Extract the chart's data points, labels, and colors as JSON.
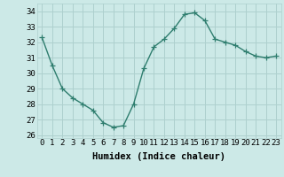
{
  "x": [
    0,
    1,
    2,
    3,
    4,
    5,
    6,
    7,
    8,
    9,
    10,
    11,
    12,
    13,
    14,
    15,
    16,
    17,
    18,
    19,
    20,
    21,
    22,
    23
  ],
  "y": [
    32.3,
    30.5,
    29.0,
    28.4,
    28.0,
    27.6,
    26.8,
    26.5,
    26.6,
    28.0,
    30.3,
    31.7,
    32.2,
    32.9,
    33.8,
    33.9,
    33.4,
    32.2,
    32.0,
    31.8,
    31.4,
    31.1,
    31.0,
    31.1
  ],
  "line_color": "#2e7d6e",
  "marker": "+",
  "marker_size": 4,
  "bg_color": "#cce9e7",
  "grid_color": "#aed0ce",
  "xlabel": "Humidex (Indice chaleur)",
  "ylim": [
    25.8,
    34.5
  ],
  "xlim": [
    -0.5,
    23.5
  ],
  "yticks": [
    26,
    27,
    28,
    29,
    30,
    31,
    32,
    33,
    34
  ],
  "xticks": [
    0,
    1,
    2,
    3,
    4,
    5,
    6,
    7,
    8,
    9,
    10,
    11,
    12,
    13,
    14,
    15,
    16,
    17,
    18,
    19,
    20,
    21,
    22,
    23
  ],
  "tick_fontsize": 6.5,
  "xlabel_fontsize": 7.5,
  "line_width": 1.0
}
